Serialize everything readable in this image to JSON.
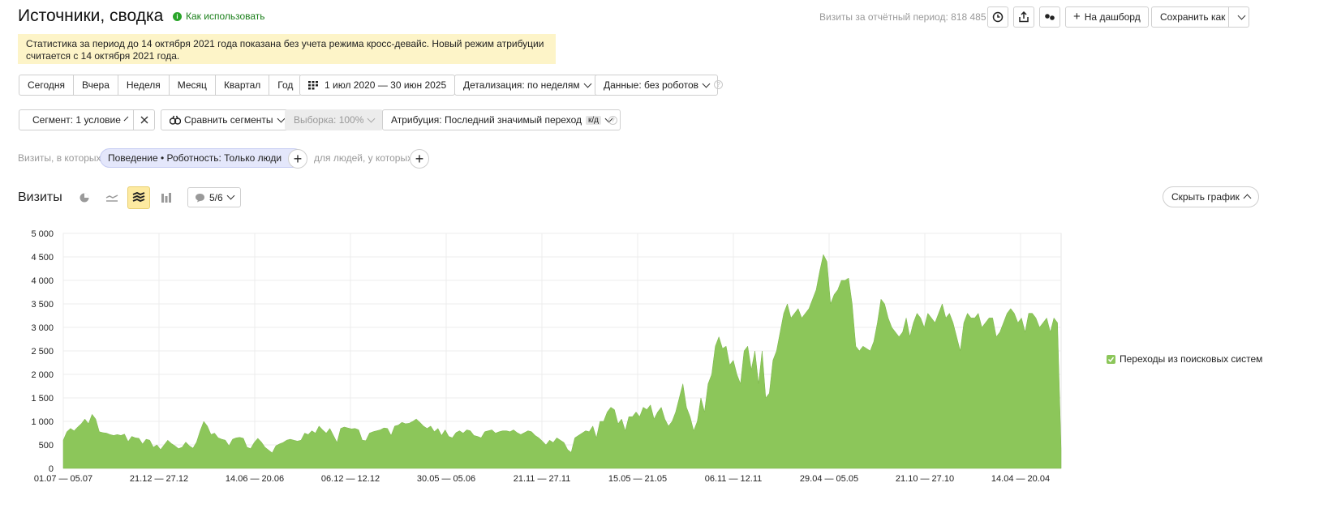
{
  "header": {
    "title": "Источники, сводка",
    "how_to_use": "Как использовать",
    "visits_period": "Визиты за отчётный период: 818 485",
    "to_dashboard": "На дашборд",
    "save_as": "Сохранить как"
  },
  "notice": {
    "line1": "Статистика за период до 14 октября 2021 года показана без учета режима кросс-девайс. Новый режим атрибуции",
    "line2": "считается с 14 октября 2021 года."
  },
  "period": {
    "buttons": [
      "Сегодня",
      "Вчера",
      "Неделя",
      "Месяц",
      "Квартал",
      "Год"
    ],
    "date_range": "1 июл 2020 — 30 июн 2025",
    "detail": "Детализация: по неделям",
    "data": "Данные: без роботов"
  },
  "segment": {
    "segment": "Сегмент: 1 условие",
    "compare": "Сравнить сегменты",
    "sample": "Выборка: 100%",
    "attribution": "Атрибуция: Последний значимый переход",
    "attribution_badge": "к/д"
  },
  "filter": {
    "visits_prefix": "Визиты, в которых",
    "chip": "Поведение • Роботность: Только люди",
    "people_prefix": "для людей, у которых"
  },
  "chart_panel": {
    "title": "Визиты",
    "counter": "5/6",
    "hide_chart": "Скрыть график"
  },
  "colors": {
    "series": "#8cc65a",
    "notice_bg": "#fdf4c8",
    "link_green": "#1a7f1a",
    "chip_bg": "#e4e7fb"
  },
  "chart_data": {
    "type": "area",
    "ylim": [
      0,
      5000
    ],
    "yticks": [
      "5 000",
      "4 500",
      "4 000",
      "3 500",
      "3 000",
      "2 500",
      "2 000",
      "1 500",
      "1 000",
      "500",
      "0"
    ],
    "xtick_labels": [
      "01.07 — 05.07",
      "21.12 — 27.12",
      "14.06 — 20.06",
      "06.12 — 12.12",
      "30.05 — 05.06",
      "21.11 — 27.11",
      "15.05 — 21.05",
      "06.11 — 12.11",
      "29.04 — 05.05",
      "21.10 — 27.10",
      "14.04 — 20.04"
    ],
    "legend": "Переходы из поисковых систем",
    "series": [
      {
        "name": "Переходы из поисковых систем",
        "values": [
          600,
          780,
          850,
          800,
          880,
          950,
          1050,
          950,
          1150,
          1050,
          780,
          760,
          750,
          720,
          700,
          720,
          700,
          730,
          570,
          680,
          650,
          640,
          520,
          620,
          600,
          450,
          500,
          400,
          500,
          600,
          530,
          480,
          420,
          450,
          560,
          480,
          430,
          560,
          800,
          1000,
          900,
          720,
          750,
          650,
          620,
          600,
          480,
          620,
          650,
          660,
          640,
          450,
          420,
          550,
          640,
          560,
          450,
          390,
          330,
          480,
          520,
          550,
          600,
          620,
          600,
          580,
          600,
          750,
          720,
          800,
          750,
          900,
          820,
          750,
          850,
          700,
          550,
          850,
          880,
          860,
          840,
          850,
          820,
          600,
          590,
          750,
          780,
          800,
          820,
          860,
          850,
          700,
          900,
          920,
          980,
          950,
          960,
          1000,
          1050,
          980,
          900,
          850,
          900,
          780,
          850,
          700,
          820,
          680,
          650,
          760,
          800,
          750,
          820,
          800,
          700,
          680,
          650,
          780,
          800,
          820,
          750,
          780,
          800,
          800,
          780,
          820,
          760,
          720,
          760,
          800,
          780,
          700,
          650,
          580,
          500,
          600,
          550,
          650,
          600,
          550,
          400,
          340,
          650,
          700,
          750,
          800,
          780,
          900,
          650,
          1000,
          1000,
          1200,
          1300,
          1250,
          950,
          1050,
          800,
          1100,
          1100,
          1200,
          1100,
          1300,
          1250,
          1350,
          1050,
          1200,
          1300,
          1050,
          900,
          1000,
          1200,
          1500,
          1800,
          1300,
          1100,
          800,
          1000,
          1500,
          1200,
          1800,
          2000,
          2600,
          2800,
          2550,
          2600,
          2200,
          2300,
          2000,
          1800,
          2500,
          2600,
          2100,
          2500,
          1800,
          2500,
          1500,
          1600,
          2300,
          2500,
          2900,
          3300,
          3500,
          3200,
          3300,
          3400,
          3200,
          3300,
          3400,
          3600,
          3800,
          4200,
          4550,
          4400,
          3500,
          3700,
          3800,
          4000,
          4000,
          4050,
          3500,
          2600,
          2500,
          2600,
          2550,
          2500,
          2700,
          3100,
          3600,
          3500,
          3200,
          3000,
          2900,
          2800,
          2900,
          3200,
          2800,
          3100,
          3300,
          3200,
          3000,
          3300,
          3200,
          3100,
          3300,
          3500,
          3200,
          3300,
          3100,
          2800,
          2500,
          3100,
          3300,
          3200,
          3200,
          3300,
          3000,
          3100,
          3200,
          3200,
          2800,
          2900,
          3100,
          3300,
          3400,
          3300,
          3100,
          3200,
          2900,
          3300,
          3300,
          3200,
          3000,
          3100,
          3200,
          2900,
          3200,
          3100,
          400
        ]
      }
    ]
  }
}
